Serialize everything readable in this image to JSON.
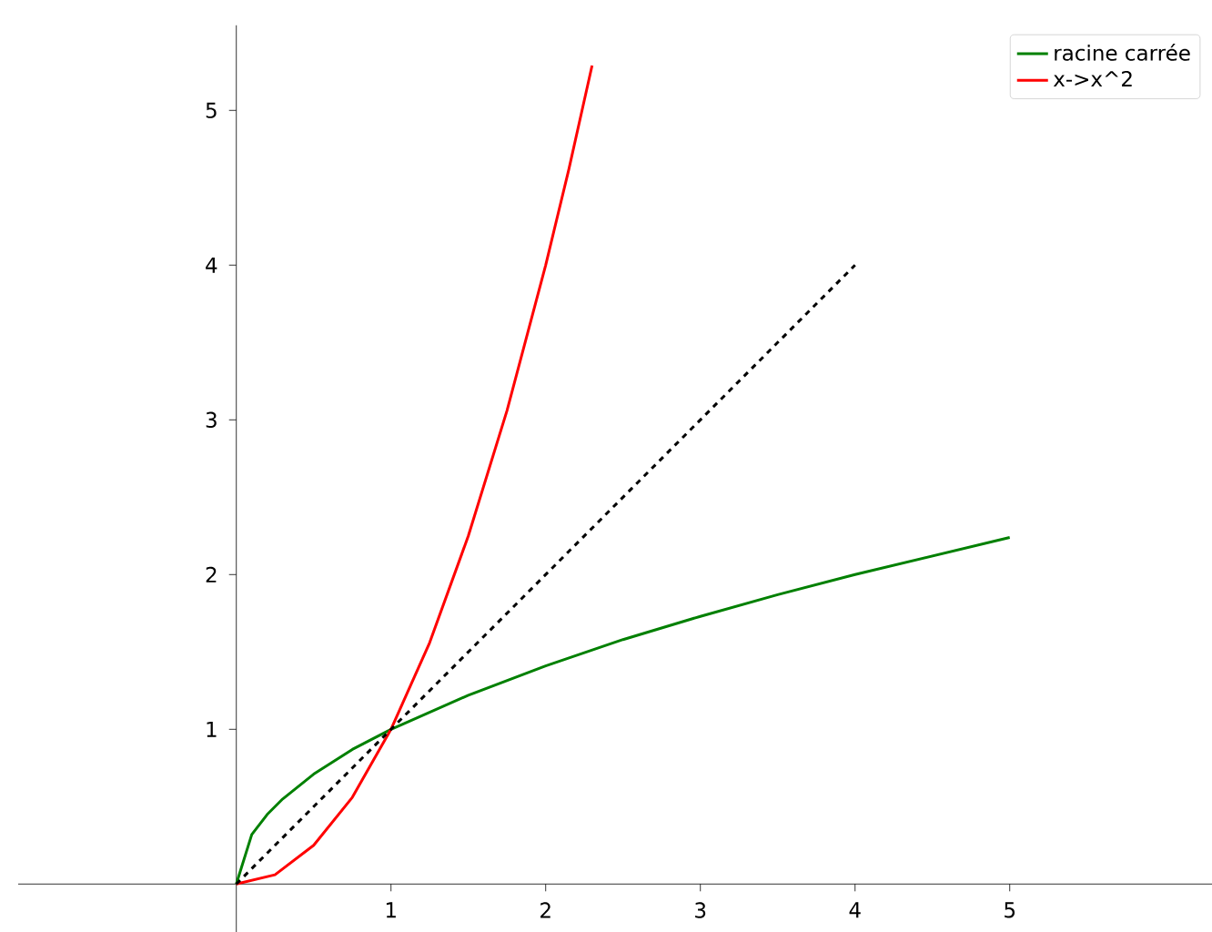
{
  "chart_data": {
    "type": "line",
    "xlim": [
      -1.41,
      6.31
    ],
    "ylim": [
      -0.31,
      5.55
    ],
    "xticks": [
      1,
      2,
      3,
      4,
      5
    ],
    "yticks": [
      1,
      2,
      3,
      4,
      5
    ],
    "grid": false,
    "legend": "top right",
    "series": [
      {
        "name": "racine carrée",
        "color": "#008000",
        "line_style": "solid",
        "x": [
          0,
          0.1,
          0.2,
          0.3,
          0.5,
          0.75,
          1,
          1.5,
          2,
          2.5,
          3,
          3.5,
          4,
          4.5,
          5
        ],
        "values": [
          0,
          0.32,
          0.45,
          0.55,
          0.71,
          0.87,
          1,
          1.22,
          1.41,
          1.58,
          1.73,
          1.87,
          2,
          2.12,
          2.24
        ]
      },
      {
        "name": "x->x^2",
        "color": "#ff0000",
        "line_style": "solid",
        "x": [
          0,
          0.25,
          0.5,
          0.75,
          1,
          1.25,
          1.5,
          1.75,
          2,
          2.15,
          2.3
        ],
        "values": [
          0,
          0.06,
          0.25,
          0.56,
          1,
          1.56,
          2.25,
          3.06,
          4,
          4.62,
          5.29
        ]
      },
      {
        "color": "#000000",
        "line_style": "dashed",
        "x": [
          0,
          4
        ],
        "values": [
          0,
          4
        ]
      }
    ]
  }
}
